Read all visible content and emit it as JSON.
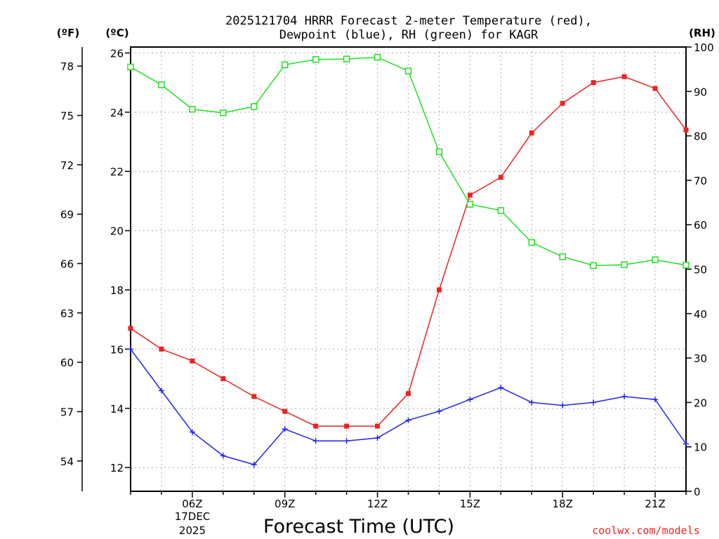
{
  "chart_data": {
    "type": "line",
    "title_line1": "2025121704 HRRR Forecast 2-meter Temperature (red),",
    "title_line2": "Dewpoint (blue), RH (green) for KAGR",
    "xlabel": "Forecast Time (UTC)",
    "credit": "coolwx.com/models",
    "left_unit_f": "(ºF)",
    "left_unit_c": "(ºC)",
    "right_unit": "(RH)",
    "date_label": [
      "17DEC",
      "2025"
    ],
    "x_hours": [
      4,
      5,
      6,
      7,
      8,
      9,
      10,
      11,
      12,
      13,
      14,
      15,
      16,
      17,
      18,
      19,
      20,
      21,
      22
    ],
    "x_ticks": [
      6,
      9,
      12,
      15,
      18,
      21
    ],
    "x_tick_labels": [
      "06Z",
      "09Z",
      "12Z",
      "15Z",
      "18Z",
      "21Z"
    ],
    "xlim": [
      4,
      22
    ],
    "celsius_lim": [
      11.2,
      26.2
    ],
    "celsius_ticks": [
      12,
      14,
      16,
      18,
      20,
      22,
      24,
      26
    ],
    "fahrenheit_ticks": [
      54,
      57,
      60,
      63,
      66,
      69,
      72,
      75,
      78
    ],
    "rh_lim": [
      0,
      100
    ],
    "rh_ticks": [
      0,
      10,
      20,
      30,
      40,
      50,
      60,
      70,
      80,
      90,
      100
    ],
    "series": [
      {
        "name": "Temperature",
        "axis": "celsius",
        "color": "#ee2222",
        "marker": "filled-square",
        "values": [
          16.7,
          16.0,
          15.6,
          15.0,
          14.4,
          13.9,
          13.4,
          13.4,
          13.4,
          14.5,
          18.0,
          21.2,
          21.8,
          23.3,
          24.3,
          25.0,
          25.2,
          24.8,
          23.4
        ]
      },
      {
        "name": "Dewpoint",
        "axis": "celsius",
        "color": "#2222ee",
        "marker": "plus",
        "values": [
          16.0,
          14.6,
          13.2,
          12.4,
          12.1,
          13.3,
          12.9,
          12.9,
          13.0,
          13.6,
          13.9,
          14.3,
          14.7,
          14.2,
          14.1,
          14.2,
          14.4,
          14.3,
          12.8
        ]
      },
      {
        "name": "RH",
        "axis": "rh",
        "color": "#22dd22",
        "marker": "open-square",
        "values": [
          95.5,
          91.5,
          86.0,
          85.2,
          86.6,
          96.0,
          97.2,
          97.3,
          97.7,
          94.6,
          76.4,
          64.6,
          63.2,
          56.0,
          52.8,
          50.8,
          51.0,
          52.1,
          50.9
        ]
      }
    ]
  }
}
